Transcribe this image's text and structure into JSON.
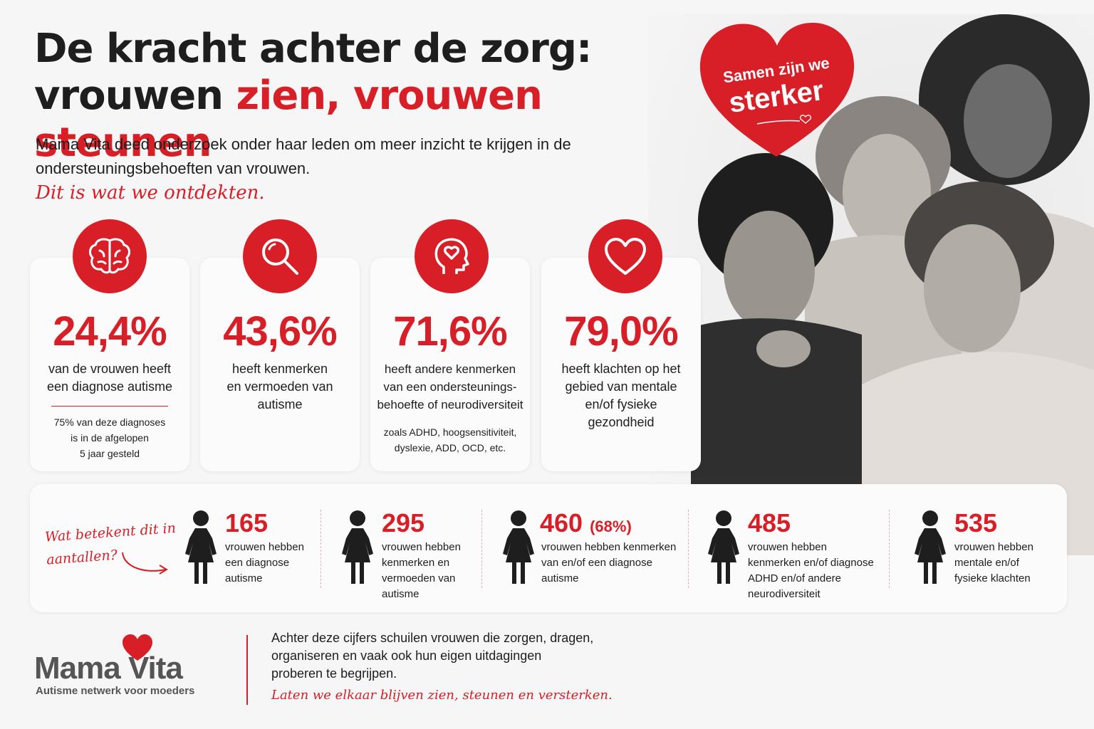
{
  "header": {
    "title_line1": "De kracht achter de zorg:",
    "title_line2_black": "vrouwen ",
    "title_line2_red": "zien, vrouwen steunen",
    "intro": "Mama Vita deed onderzoek onder haar leden om meer inzicht te krijgen in de ondersteuningsbehoeften van vrouwen.",
    "tagline": "Dit is wat we ontdekten."
  },
  "badge": {
    "line1": "Samen zijn we",
    "line2": "sterker"
  },
  "stats": [
    {
      "icon": "brain-icon",
      "value": "24,4%",
      "desc_lines": [
        "van de vrouwen heeft",
        "een diagnose autisme"
      ],
      "note_lines": [
        "75% van deze diagnoses",
        "is in de afgelopen",
        "5 jaar gesteld"
      ]
    },
    {
      "icon": "search-icon",
      "value": "43,6%",
      "desc_lines": [
        "heeft kenmerken",
        "en vermoeden van",
        "autisme"
      ]
    },
    {
      "icon": "head-heart-icon",
      "value": "71,6%",
      "desc_lines": [
        "heeft andere kenmerken",
        "van een ondersteunings-",
        "behoefte of neurodiversiteit"
      ],
      "note_lines": [
        "zoals ADHD, hoogsensitiviteit,",
        "dyslexie, ADD, OCD, etc."
      ]
    },
    {
      "icon": "heart-icon",
      "value": "79,0%",
      "desc_lines": [
        "heeft klachten op het",
        "gebied van mentale",
        "en/of fysieke",
        "gezondheid"
      ]
    }
  ],
  "counts": {
    "lead_lines": [
      "Wat betekent dit in",
      "aantallen?"
    ],
    "items": [
      {
        "icon": "woman-icon",
        "value": "165",
        "extra": "",
        "lines": [
          "vrouwen hebben",
          "een diagnose",
          "autisme"
        ]
      },
      {
        "icon": "woman-icon",
        "value": "295",
        "extra": "",
        "lines": [
          "vrouwen hebben",
          "kenmerken en",
          "vermoeden van",
          "autisme"
        ]
      },
      {
        "icon": "woman-icon",
        "value": "460",
        "extra": "(68%)",
        "lines": [
          "vrouwen hebben kenmerken",
          "van en/of een diagnose",
          "autisme"
        ]
      },
      {
        "icon": "woman-icon",
        "value": "485",
        "extra": "",
        "lines": [
          "vrouwen hebben",
          "kenmerken en/of diagnose",
          "ADHD en/of andere",
          "neurodiversiteit"
        ]
      },
      {
        "icon": "woman-icon",
        "value": "535",
        "extra": "",
        "lines": [
          "vrouwen hebben",
          "mentale en/of",
          "fysieke klachten"
        ]
      }
    ]
  },
  "footer": {
    "logo_name": "Mama Vita",
    "logo_sub": "Autisme netwerk voor moeders",
    "text_lines": [
      "Achter deze cijfers schuilen vrouwen die zorgen, dragen,",
      "organiseren en vaak ook hun eigen uitdagingen",
      "proberen te begrijpen."
    ],
    "tagline": "Laten we elkaar blijven zien, steunen en versterken."
  },
  "colors": {
    "accent": "#d81e27",
    "text": "#1e1e1e",
    "background": "#f6f6f6"
  }
}
